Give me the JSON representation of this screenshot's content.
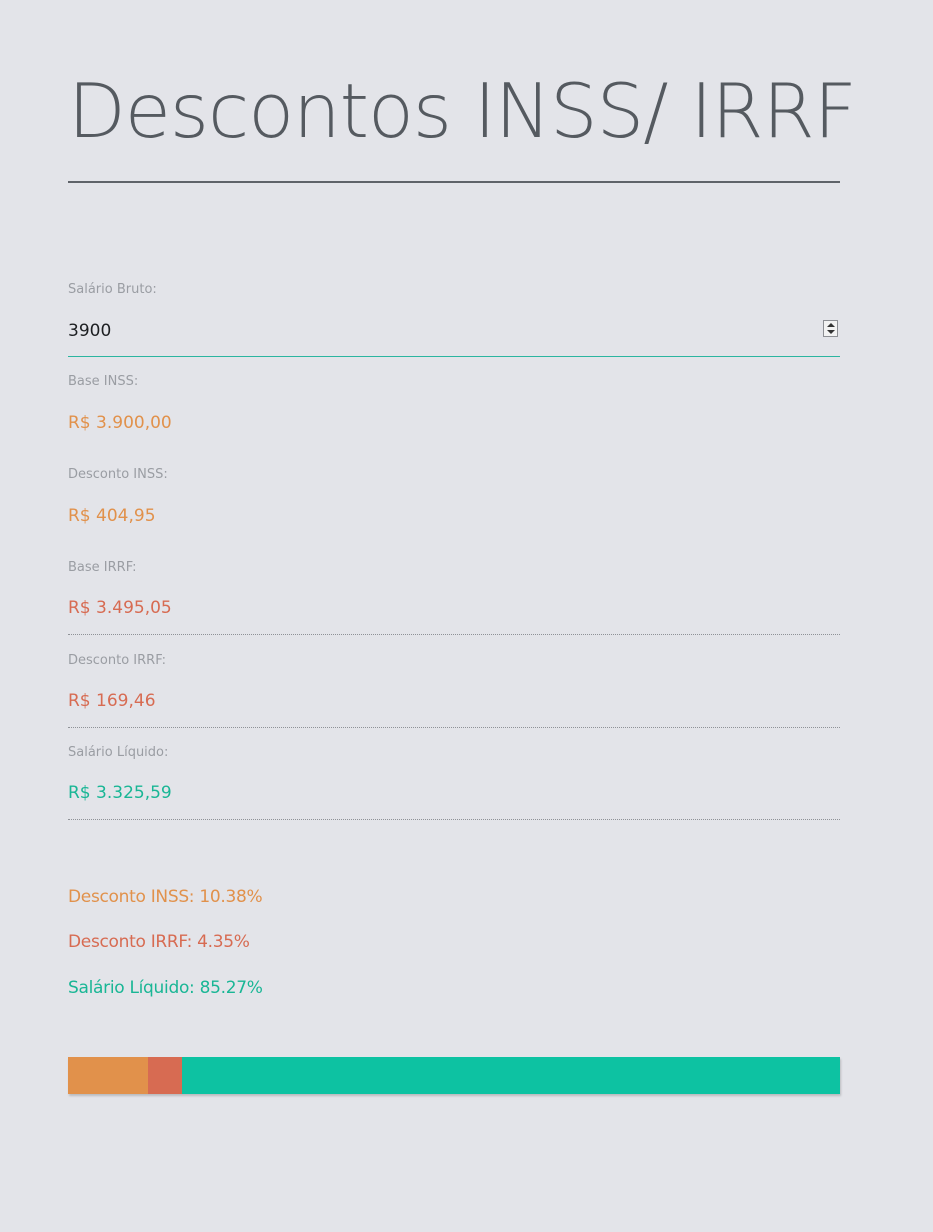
{
  "title": "Descontos INSS/ IRRF",
  "form": {
    "salario_bruto_label": "Salário Bruto:",
    "salario_bruto_value": "3900"
  },
  "results": {
    "base_inss_label": "Base INSS:",
    "base_inss_value": "R$ 3.900,00",
    "desconto_inss_label": "Desconto INSS:",
    "desconto_inss_value": "R$ 404,95",
    "base_irrf_label": "Base IRRF:",
    "base_irrf_value": "R$ 3.495,05",
    "desconto_irrf_label": "Desconto IRRF:",
    "desconto_irrf_value": "R$ 169,46",
    "salario_liquido_label": "Salário Líquido:",
    "salario_liquido_value": "R$ 3.325,59"
  },
  "percentages": {
    "inss": "Desconto INSS: 10.38%",
    "irrf": "Desconto IRRF: 4.35%",
    "liquido": "Salário Líquido: 85.27%"
  },
  "bar": {
    "inss_percent": 10.38,
    "irrf_percent": 4.35,
    "liquido_percent": 85.27
  },
  "colors": {
    "inss": "#e1914b",
    "irrf": "#d76b52",
    "liquido": "#0dc2a2",
    "input_underline": "#2bb5a0",
    "background": "#e3e4e9"
  },
  "icons": {
    "stepper": "spin-stepper-icon"
  }
}
